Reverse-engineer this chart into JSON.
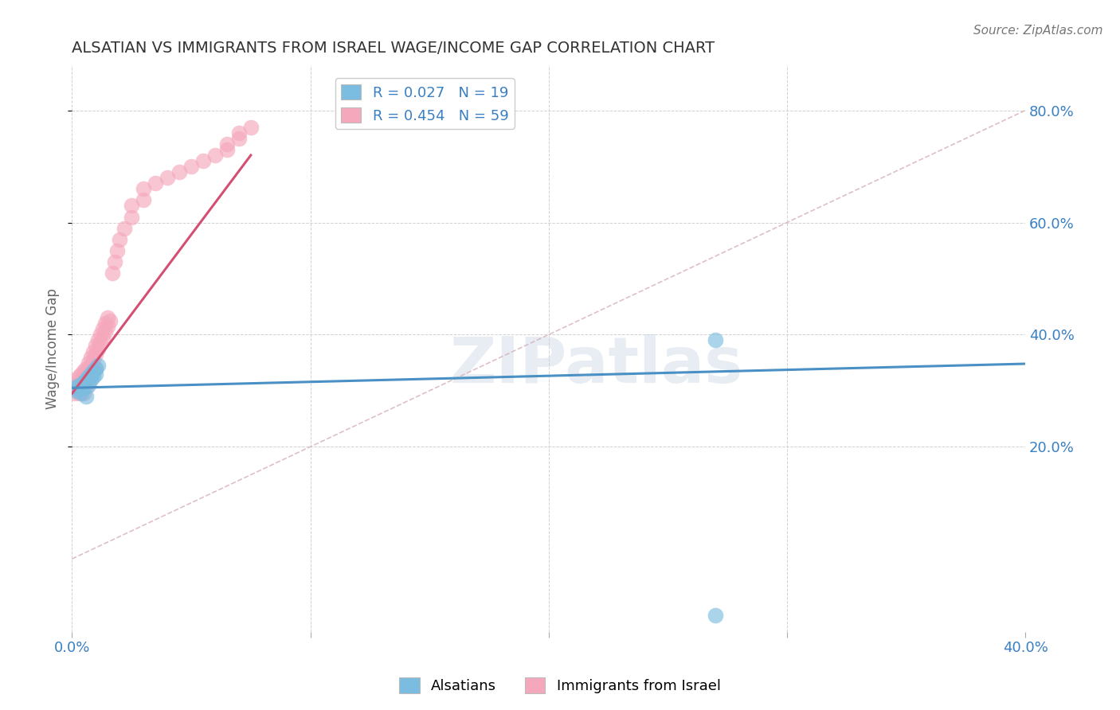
{
  "title": "ALSATIAN VS IMMIGRANTS FROM ISRAEL WAGE/INCOME GAP CORRELATION CHART",
  "source": "Source: ZipAtlas.com",
  "ylabel_label": "Wage/Income Gap",
  "x_min": 0.0,
  "x_max": 0.4,
  "y_min": -0.13,
  "y_max": 0.88,
  "x_ticks": [
    0.0,
    0.1,
    0.2,
    0.3,
    0.4
  ],
  "y_ticks": [
    0.2,
    0.4,
    0.6,
    0.8
  ],
  "y_tick_labels": [
    "20.0%",
    "40.0%",
    "60.0%",
    "80.0%"
  ],
  "blue_color": "#7bbde0",
  "pink_color": "#f5a8bc",
  "blue_line_color": "#4a90c4",
  "pink_line_color": "#d44f72",
  "diag_color": "#d8b0b8",
  "R_blue": 0.027,
  "N_blue": 19,
  "R_pink": 0.454,
  "N_pink": 59,
  "legend_text_color": "#3a7fc1",
  "watermark_text": "ZIPatlas",
  "watermark_color": "#d0dce8",
  "alsatians_x": [
    0.001,
    0.002,
    0.003,
    0.004,
    0.005,
    0.005,
    0.006,
    0.006,
    0.007,
    0.007,
    0.008,
    0.008,
    0.009,
    0.009,
    0.01,
    0.01,
    0.011,
    0.27,
    0.27
  ],
  "alsatians_y": [
    0.305,
    0.3,
    0.31,
    0.295,
    0.315,
    0.305,
    0.32,
    0.29,
    0.325,
    0.31,
    0.33,
    0.32,
    0.335,
    0.325,
    0.34,
    0.33,
    0.345,
    0.39,
    -0.1
  ],
  "israel_x": [
    0.001,
    0.001,
    0.002,
    0.002,
    0.003,
    0.003,
    0.003,
    0.004,
    0.004,
    0.004,
    0.005,
    0.005,
    0.005,
    0.005,
    0.006,
    0.006,
    0.006,
    0.007,
    0.007,
    0.007,
    0.008,
    0.008,
    0.008,
    0.009,
    0.009,
    0.01,
    0.01,
    0.01,
    0.011,
    0.011,
    0.012,
    0.012,
    0.013,
    0.013,
    0.014,
    0.014,
    0.015,
    0.015,
    0.016,
    0.017,
    0.018,
    0.019,
    0.02,
    0.022,
    0.025,
    0.025,
    0.03,
    0.03,
    0.035,
    0.04,
    0.045,
    0.05,
    0.055,
    0.06,
    0.065,
    0.065,
    0.07,
    0.07,
    0.075
  ],
  "israel_y": [
    0.295,
    0.31,
    0.305,
    0.32,
    0.315,
    0.325,
    0.295,
    0.31,
    0.33,
    0.305,
    0.32,
    0.335,
    0.31,
    0.295,
    0.325,
    0.34,
    0.305,
    0.335,
    0.35,
    0.315,
    0.345,
    0.36,
    0.325,
    0.355,
    0.37,
    0.365,
    0.38,
    0.34,
    0.375,
    0.39,
    0.385,
    0.4,
    0.395,
    0.41,
    0.405,
    0.42,
    0.415,
    0.43,
    0.425,
    0.51,
    0.53,
    0.55,
    0.57,
    0.59,
    0.61,
    0.63,
    0.64,
    0.66,
    0.67,
    0.68,
    0.69,
    0.7,
    0.71,
    0.72,
    0.73,
    0.74,
    0.75,
    0.76,
    0.77
  ],
  "blue_trend_x": [
    0.0,
    0.4
  ],
  "blue_trend_y": [
    0.305,
    0.348
  ],
  "pink_trend_x": [
    0.0,
    0.075
  ],
  "pink_trend_y": [
    0.295,
    0.72
  ]
}
